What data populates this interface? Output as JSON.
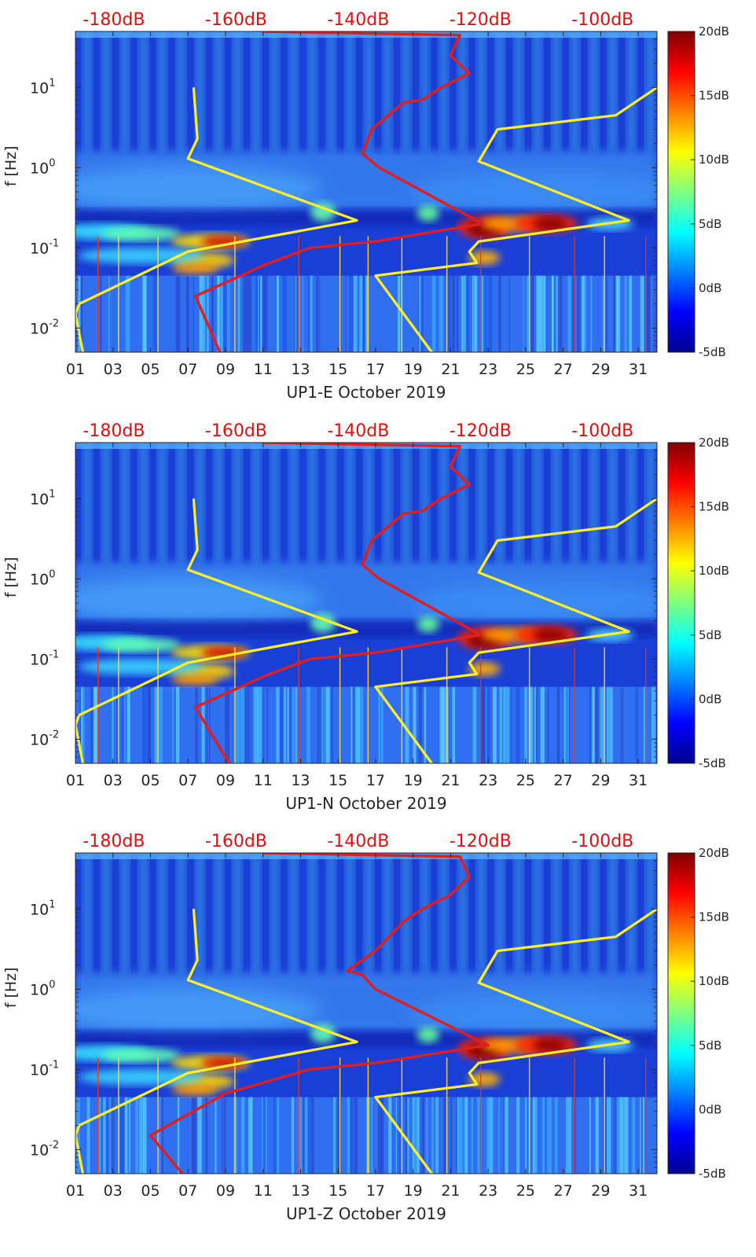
{
  "colors": {
    "red_curve": "#e11d1d",
    "yellow_curve": "#ffef29",
    "db_label": "#e01010",
    "axis": "#262626"
  },
  "colormap": "jet",
  "chart_data": [
    {
      "type": "heatmap",
      "xlabel": "UP1-E October 2019",
      "ylabel": "f [Hz]",
      "x_tick_labels": [
        "01",
        "03",
        "05",
        "07",
        "09",
        "11",
        "13",
        "15",
        "17",
        "19",
        "21",
        "23",
        "25",
        "27",
        "29",
        "31"
      ],
      "x_tick_values": [
        1,
        3,
        5,
        7,
        9,
        11,
        13,
        15,
        17,
        19,
        21,
        23,
        25,
        27,
        29,
        31
      ],
      "xlim": [
        1,
        32
      ],
      "y_scale": "log",
      "ylim": [
        0.005,
        50
      ],
      "y_tick_values": [
        0.01,
        0.1,
        1,
        10
      ],
      "y_tick_base": "10",
      "y_tick_exponents": [
        "-2",
        "-1",
        "0",
        "1"
      ],
      "top_axis_labels": [
        "-180dB",
        "-160dB",
        "-140dB",
        "-120dB",
        "-100dB"
      ],
      "top_axis_db_values": [
        -180,
        -160,
        -140,
        -120,
        -100
      ],
      "colorbar_labels": [
        "20dB",
        "15dB",
        "10dB",
        "5dB",
        "0dB",
        "-5dB"
      ],
      "colorbar_range_db": [
        -5,
        20
      ],
      "noise_model_curves": {
        "red_mean_psd": [
          [
            11,
            50
          ],
          [
            21.5,
            45
          ],
          [
            21.0,
            25
          ],
          [
            22.0,
            15
          ],
          [
            20.5,
            10
          ],
          [
            19.5,
            7
          ],
          [
            18.5,
            6.5
          ],
          [
            16.8,
            3
          ],
          [
            16.3,
            1.5
          ],
          [
            17.2,
            1.0
          ],
          [
            22.7,
            0.2
          ],
          [
            17.0,
            0.12
          ],
          [
            13.5,
            0.1
          ],
          [
            11.0,
            0.06
          ],
          [
            7.4,
            0.025
          ],
          [
            8.7,
            0.005
          ]
        ],
        "yellow_low_model": [
          [
            7.3,
            10
          ],
          [
            7.5,
            2.3
          ],
          [
            7.0,
            1.3
          ],
          [
            16.0,
            0.22
          ],
          [
            7.0,
            0.09
          ],
          [
            1.2,
            0.02
          ],
          [
            1.0,
            0.015
          ],
          [
            1.4,
            0.005
          ]
        ],
        "yellow_high_model": [
          [
            32,
            10
          ],
          [
            29.8,
            4.5
          ],
          [
            23.5,
            3
          ],
          [
            22.5,
            1.2
          ],
          [
            30.5,
            0.22
          ],
          [
            22.5,
            0.12
          ],
          [
            22.0,
            0.09
          ],
          [
            22.4,
            0.065
          ],
          [
            17.0,
            0.045
          ],
          [
            20.0,
            0.005
          ]
        ]
      }
    },
    {
      "type": "heatmap",
      "xlabel": "UP1-N October 2019",
      "ylabel": "f [Hz]",
      "x_tick_labels": [
        "01",
        "03",
        "05",
        "07",
        "09",
        "11",
        "13",
        "15",
        "17",
        "19",
        "21",
        "23",
        "25",
        "27",
        "29",
        "31"
      ],
      "x_tick_values": [
        1,
        3,
        5,
        7,
        9,
        11,
        13,
        15,
        17,
        19,
        21,
        23,
        25,
        27,
        29,
        31
      ],
      "xlim": [
        1,
        32
      ],
      "y_scale": "log",
      "ylim": [
        0.005,
        50
      ],
      "y_tick_values": [
        0.01,
        0.1,
        1,
        10
      ],
      "y_tick_base": "10",
      "y_tick_exponents": [
        "-2",
        "-1",
        "0",
        "1"
      ],
      "top_axis_labels": [
        "-180dB",
        "-160dB",
        "-140dB",
        "-120dB",
        "-100dB"
      ],
      "top_axis_db_values": [
        -180,
        -160,
        -140,
        -120,
        -100
      ],
      "colorbar_labels": [
        "20dB",
        "15dB",
        "10dB",
        "5dB",
        "0dB",
        "-5dB"
      ],
      "colorbar_range_db": [
        -5,
        20
      ],
      "noise_model_curves": {
        "red_mean_psd": [
          [
            11,
            50
          ],
          [
            21.5,
            45
          ],
          [
            21.0,
            25
          ],
          [
            22.0,
            15
          ],
          [
            20.5,
            10
          ],
          [
            19.5,
            7
          ],
          [
            18.5,
            6.5
          ],
          [
            16.8,
            3
          ],
          [
            16.3,
            1.5
          ],
          [
            17.2,
            1.0
          ],
          [
            22.6,
            0.2
          ],
          [
            17.0,
            0.12
          ],
          [
            13.5,
            0.1
          ],
          [
            11.0,
            0.06
          ],
          [
            7.4,
            0.025
          ],
          [
            9.2,
            0.005
          ]
        ],
        "yellow_low_model": [
          [
            7.3,
            10
          ],
          [
            7.5,
            2.3
          ],
          [
            7.0,
            1.3
          ],
          [
            16.0,
            0.22
          ],
          [
            7.0,
            0.09
          ],
          [
            1.2,
            0.02
          ],
          [
            1.0,
            0.015
          ],
          [
            1.4,
            0.005
          ]
        ],
        "yellow_high_model": [
          [
            32,
            10
          ],
          [
            29.8,
            4.5
          ],
          [
            23.5,
            3
          ],
          [
            22.5,
            1.2
          ],
          [
            30.5,
            0.22
          ],
          [
            22.5,
            0.12
          ],
          [
            22.0,
            0.09
          ],
          [
            22.4,
            0.065
          ],
          [
            17.0,
            0.045
          ],
          [
            20.0,
            0.005
          ]
        ]
      }
    },
    {
      "type": "heatmap",
      "xlabel": "UP1-Z October 2019",
      "ylabel": "f [Hz]",
      "x_tick_labels": [
        "01",
        "03",
        "05",
        "07",
        "09",
        "11",
        "13",
        "15",
        "17",
        "19",
        "21",
        "23",
        "25",
        "27",
        "29",
        "31"
      ],
      "x_tick_values": [
        1,
        3,
        5,
        7,
        9,
        11,
        13,
        15,
        17,
        19,
        21,
        23,
        25,
        27,
        29,
        31
      ],
      "xlim": [
        1,
        32
      ],
      "y_scale": "log",
      "ylim": [
        0.005,
        50
      ],
      "y_tick_values": [
        0.01,
        0.1,
        1,
        10
      ],
      "y_tick_base": "10",
      "y_tick_exponents": [
        "-2",
        "-1",
        "0",
        "1"
      ],
      "top_axis_labels": [
        "-180dB",
        "-160dB",
        "-140dB",
        "-120dB",
        "-100dB"
      ],
      "top_axis_db_values": [
        -180,
        -160,
        -140,
        -120,
        -100
      ],
      "colorbar_labels": [
        "20dB",
        "15dB",
        "10dB",
        "5dB",
        "0dB",
        "-5dB"
      ],
      "colorbar_range_db": [
        -5,
        20
      ],
      "noise_model_curves": {
        "red_mean_psd": [
          [
            11,
            50
          ],
          [
            21.5,
            45
          ],
          [
            22.0,
            25
          ],
          [
            21.0,
            15
          ],
          [
            19.5,
            10
          ],
          [
            18.5,
            7
          ],
          [
            17.0,
            3
          ],
          [
            15.5,
            1.7
          ],
          [
            16.3,
            1.5
          ],
          [
            17.0,
            1.0
          ],
          [
            23.0,
            0.2
          ],
          [
            17.0,
            0.12
          ],
          [
            13.5,
            0.1
          ],
          [
            9.0,
            0.05
          ],
          [
            5.0,
            0.015
          ],
          [
            6.7,
            0.005
          ]
        ],
        "yellow_low_model": [
          [
            7.3,
            10
          ],
          [
            7.5,
            2.3
          ],
          [
            7.0,
            1.3
          ],
          [
            16.0,
            0.22
          ],
          [
            7.0,
            0.09
          ],
          [
            1.2,
            0.02
          ],
          [
            1.0,
            0.015
          ],
          [
            1.4,
            0.005
          ]
        ],
        "yellow_high_model": [
          [
            32,
            10
          ],
          [
            29.8,
            4.5
          ],
          [
            23.5,
            3
          ],
          [
            22.5,
            1.2
          ],
          [
            30.5,
            0.22
          ],
          [
            22.5,
            0.12
          ],
          [
            22.0,
            0.09
          ],
          [
            22.4,
            0.065
          ],
          [
            17.0,
            0.045
          ],
          [
            20.0,
            0.005
          ]
        ]
      }
    }
  ]
}
